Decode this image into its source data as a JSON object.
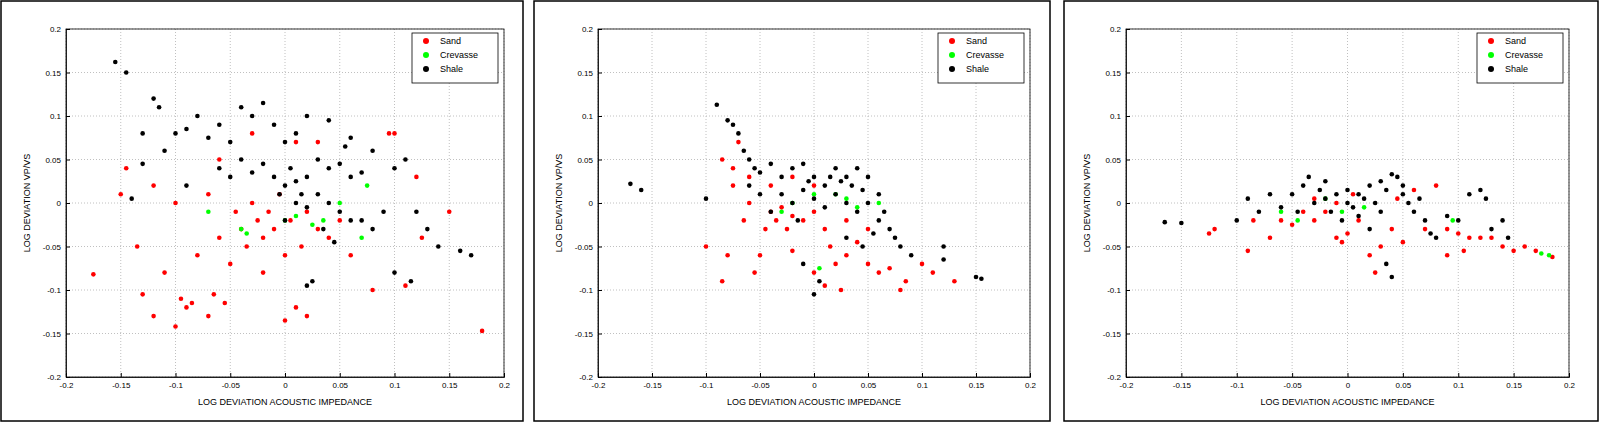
{
  "chart_data": [
    {
      "type": "scatter",
      "xlabel": "LOG DEVIATION ACOUSTIC IMPEDANCE",
      "ylabel": "LOG DEVIATION VP/VS",
      "xlim": [
        -0.2,
        0.2
      ],
      "ylim": [
        -0.2,
        0.2
      ],
      "xticks": [
        -0.2,
        -0.15,
        -0.1,
        -0.05,
        0,
        0.05,
        0.1,
        0.15,
        0.2
      ],
      "yticks": [
        -0.2,
        -0.15,
        -0.1,
        -0.05,
        0,
        0.05,
        0.1,
        0.15,
        0.2
      ],
      "grid": true,
      "legend": "upper right",
      "series": [
        {
          "name": "Sand",
          "color": "#ff0000",
          "marker": "circle",
          "x": [
            -0.175,
            -0.15,
            -0.145,
            -0.135,
            -0.13,
            -0.12,
            -0.11,
            -0.1,
            -0.095,
            -0.09,
            -0.085,
            -0.08,
            -0.07,
            -0.065,
            -0.06,
            -0.055,
            -0.05,
            -0.045,
            -0.04,
            -0.035,
            -0.03,
            -0.025,
            -0.02,
            -0.015,
            -0.01,
            -0.005,
            0,
            0.005,
            0.01,
            0.015,
            0.02,
            0.03,
            0.04,
            0.05,
            0.06,
            0.08,
            0.095,
            0.1,
            0.12,
            0.125,
            0.15,
            0.18,
            -0.12,
            -0.1,
            -0.07,
            -0.06,
            -0.03,
            0.01,
            0.03,
            -0.02,
            0,
            0.02,
            0.11
          ],
          "values": [
            -0.082,
            0.01,
            0.04,
            -0.05,
            -0.105,
            -0.13,
            -0.08,
            -0.142,
            -0.11,
            -0.12,
            -0.115,
            -0.06,
            -0.13,
            -0.105,
            -0.04,
            -0.115,
            -0.07,
            -0.01,
            -0.03,
            -0.05,
            0,
            -0.02,
            -0.04,
            -0.01,
            -0.03,
            0.01,
            -0.135,
            -0.02,
            -0.12,
            -0.05,
            -0.01,
            -0.03,
            -0.04,
            -0.02,
            -0.06,
            -0.1,
            0.08,
            0.08,
            0.03,
            -0.04,
            -0.01,
            -0.147,
            0.02,
            0,
            0.01,
            0.05,
            0.08,
            0.07,
            0.07,
            -0.08,
            -0.06,
            -0.13,
            -0.095
          ]
        },
        {
          "name": "Crevasse",
          "color": "#00ff00",
          "marker": "circle",
          "x": [
            -0.07,
            -0.04,
            -0.035,
            0,
            0.01,
            0.025,
            0.035,
            0.05,
            0.075,
            0.07
          ],
          "values": [
            -0.01,
            -0.03,
            -0.035,
            -0.02,
            -0.015,
            -0.025,
            -0.02,
            0,
            0.02,
            -0.04
          ]
        },
        {
          "name": "Shale",
          "color": "#000000",
          "marker": "circle",
          "x": [
            -0.155,
            -0.145,
            -0.12,
            -0.115,
            -0.13,
            -0.1,
            -0.09,
            -0.08,
            -0.07,
            -0.06,
            -0.05,
            -0.04,
            -0.03,
            -0.02,
            -0.01,
            0,
            0.01,
            0.02,
            0.04,
            0.06,
            0.08,
            -0.06,
            -0.05,
            -0.04,
            -0.03,
            -0.02,
            -0.01,
            0,
            0.005,
            0.01,
            0.02,
            0.03,
            0.04,
            0.05,
            0.06,
            0.07,
            0.01,
            0.02,
            0.03,
            0.04,
            0.05,
            0.06,
            0.07,
            0.08,
            0.09,
            0.1,
            0.11,
            0.12,
            0.13,
            0.14,
            0.16,
            0.17,
            0.1,
            0.115,
            0.025,
            0.02,
            -0.13,
            -0.14,
            -0.09,
            -0.11,
            0,
            -0.005,
            0.015,
            0.035,
            0.045,
            0.055
          ],
          "values": [
            0.162,
            0.15,
            0.12,
            0.11,
            0.08,
            0.08,
            0.085,
            0.1,
            0.075,
            0.09,
            0.07,
            0.11,
            0.1,
            0.115,
            0.09,
            0.07,
            0.08,
            0.1,
            0.095,
            0.075,
            0.06,
            0.04,
            0.03,
            0.05,
            0.035,
            0.045,
            0.03,
            0.02,
            0.04,
            0.025,
            0.03,
            0.05,
            0.04,
            0.045,
            0.03,
            0.035,
            0,
            -0.005,
            0.01,
            0,
            -0.01,
            -0.02,
            -0.02,
            -0.03,
            -0.01,
            0.04,
            0.05,
            -0.01,
            -0.03,
            -0.05,
            -0.055,
            -0.06,
            -0.08,
            -0.09,
            -0.09,
            -0.095,
            0.045,
            0.005,
            0.02,
            0.06,
            -0.02,
            0.01,
            0.01,
            -0.03,
            -0.045,
            0.065
          ]
        }
      ]
    },
    {
      "type": "scatter",
      "xlabel": "LOG DEVIATION ACOUSTIC IMPEDANCE",
      "ylabel": "LOG DEVIATION VP/VS",
      "xlim": [
        -0.2,
        0.2
      ],
      "ylim": [
        -0.2,
        0.2
      ],
      "xticks": [
        -0.2,
        -0.15,
        -0.1,
        -0.05,
        0,
        0.05,
        0.1,
        0.15,
        0.2
      ],
      "yticks": [
        -0.2,
        -0.15,
        -0.1,
        -0.05,
        0,
        0.05,
        0.1,
        0.15,
        0.2
      ],
      "grid": true,
      "legend": "upper right",
      "series": [
        {
          "name": "Sand",
          "color": "#ff0000",
          "marker": "circle",
          "x": [
            -0.1,
            -0.085,
            -0.08,
            -0.085,
            -0.075,
            -0.07,
            -0.065,
            -0.06,
            -0.055,
            -0.05,
            -0.045,
            -0.04,
            -0.035,
            -0.03,
            -0.025,
            -0.02,
            -0.01,
            0,
            0.01,
            0.015,
            0.02,
            0.025,
            0.03,
            0.04,
            0.05,
            0.06,
            0.07,
            0.08,
            0.085,
            0.1,
            0.11,
            0.13,
            0,
            0.01,
            -0.02,
            -0.04,
            -0.02,
            0,
            0.03,
            -0.06,
            -0.075,
            0.05
          ],
          "values": [
            -0.05,
            -0.09,
            -0.06,
            0.05,
            0.02,
            0.07,
            -0.02,
            0,
            -0.08,
            -0.06,
            -0.03,
            -0.01,
            -0.02,
            -0.005,
            -0.03,
            -0.015,
            -0.02,
            -0.01,
            -0.03,
            -0.05,
            -0.07,
            -0.1,
            -0.06,
            -0.045,
            -0.07,
            -0.08,
            -0.075,
            -0.1,
            -0.09,
            -0.07,
            -0.08,
            -0.09,
            -0.08,
            -0.095,
            -0.055,
            0.02,
            0.03,
            0.02,
            -0.02,
            0.03,
            0.04,
            -0.03
          ]
        },
        {
          "name": "Crevasse",
          "color": "#00ff00",
          "marker": "circle",
          "x": [
            -0.03,
            -0.02,
            0,
            0.005,
            0.02,
            0.03,
            0.04,
            0.06
          ],
          "values": [
            -0.01,
            0,
            0.01,
            -0.075,
            0.01,
            0.005,
            -0.005,
            0
          ]
        },
        {
          "name": "Shale",
          "color": "#000000",
          "marker": "circle",
          "x": [
            -0.17,
            -0.16,
            -0.1,
            -0.09,
            -0.08,
            -0.075,
            -0.07,
            -0.065,
            -0.06,
            -0.055,
            -0.05,
            -0.04,
            -0.03,
            -0.02,
            -0.01,
            0,
            0.01,
            0.02,
            0.03,
            0.04,
            0.05,
            -0.03,
            -0.02,
            -0.01,
            0,
            0.01,
            0.02,
            0.03,
            0.04,
            0.05,
            0.06,
            0.07,
            0.075,
            0.08,
            0.09,
            0.12,
            0.15,
            0.155,
            0,
            0.005,
            -0.01,
            0.03,
            0.045,
            -0.04,
            -0.05,
            0.015,
            0.025,
            0.035,
            -0.005,
            0.045,
            0.06,
            -0.06,
            0.065,
            -0.015,
            0.055,
            0.12
          ],
          "values": [
            0.022,
            0.015,
            0.005,
            0.113,
            0.095,
            0.09,
            0.08,
            0.06,
            0.05,
            0.04,
            0.035,
            0.045,
            0.03,
            0.04,
            0.045,
            0.03,
            0.02,
            0.04,
            0.03,
            0.04,
            0.03,
            0.01,
            0,
            0.015,
            0.005,
            -0.005,
            0.01,
            0,
            -0.01,
            0,
            -0.02,
            -0.03,
            -0.04,
            -0.05,
            -0.06,
            -0.05,
            -0.085,
            -0.087,
            -0.105,
            -0.09,
            -0.07,
            -0.04,
            -0.05,
            -0.01,
            0.01,
            0.03,
            0.025,
            0.02,
            0.025,
            0.015,
            0.01,
            0.02,
            -0.01,
            -0.02,
            -0.035,
            -0.065
          ]
        }
      ]
    },
    {
      "type": "scatter",
      "xlabel": "LOG DEVIATION ACOUSTIC IMPEDANCE",
      "ylabel": "LOG DEVIATION VP/VS",
      "xlim": [
        -0.2,
        0.2
      ],
      "ylim": [
        -0.2,
        0.2
      ],
      "xticks": [
        -0.2,
        -0.15,
        -0.1,
        -0.05,
        0,
        0.05,
        0.1,
        0.15,
        0.2
      ],
      "yticks": [
        -0.2,
        -0.15,
        -0.1,
        -0.05,
        0,
        0.05,
        0.1,
        0.15,
        0.2
      ],
      "grid": true,
      "legend": "upper right",
      "series": [
        {
          "name": "Sand",
          "color": "#ff0000",
          "marker": "circle",
          "x": [
            -0.125,
            -0.12,
            -0.09,
            -0.085,
            -0.07,
            -0.06,
            -0.05,
            -0.04,
            -0.03,
            -0.02,
            -0.01,
            -0.005,
            0,
            0.01,
            0.02,
            0.025,
            0.03,
            0.04,
            0.05,
            0.06,
            0.07,
            0.08,
            0.09,
            0.1,
            0.11,
            0.12,
            0.13,
            0.14,
            0.15,
            0.16,
            0.17,
            0.185,
            0.09,
            0.105,
            -0.01,
            0.005,
            -0.03,
            0.045
          ],
          "values": [
            -0.035,
            -0.03,
            -0.055,
            -0.02,
            -0.04,
            -0.02,
            -0.025,
            -0.01,
            -0.02,
            -0.01,
            -0.04,
            -0.045,
            -0.035,
            -0.02,
            -0.06,
            -0.08,
            -0.05,
            -0.03,
            -0.045,
            0.015,
            -0.03,
            0.02,
            -0.03,
            -0.035,
            -0.04,
            -0.04,
            -0.04,
            -0.05,
            -0.055,
            -0.05,
            -0.055,
            -0.062,
            -0.06,
            -0.055,
            0,
            0.01,
            0.005,
            0.005
          ]
        },
        {
          "name": "Crevasse",
          "color": "#00ff00",
          "marker": "circle",
          "x": [
            -0.06,
            -0.045,
            -0.02,
            -0.005,
            0.015,
            0.095,
            0.175,
            0.182
          ],
          "values": [
            -0.01,
            -0.02,
            0.005,
            -0.01,
            -0.005,
            -0.02,
            -0.058,
            -0.06
          ]
        },
        {
          "name": "Shale",
          "color": "#000000",
          "marker": "circle",
          "x": [
            -0.165,
            -0.15,
            -0.1,
            -0.09,
            -0.08,
            -0.07,
            -0.06,
            -0.05,
            -0.04,
            -0.035,
            -0.03,
            -0.02,
            -0.015,
            -0.01,
            0,
            0.005,
            0.01,
            0.015,
            0.02,
            0.025,
            0.03,
            0.035,
            0.04,
            0.045,
            0.05,
            0.055,
            0.06,
            0.07,
            0.075,
            0.08,
            0.09,
            0.1,
            0.11,
            0.12,
            0.125,
            0.13,
            0.14,
            0.145,
            0.04,
            0.035,
            -0.02,
            0,
            0.01,
            -0.005,
            0.03,
            0.05,
            0.065,
            -0.025,
            -0.045,
            0.02
          ],
          "values": [
            -0.022,
            -0.023,
            -0.02,
            0.005,
            -0.01,
            0.01,
            -0.005,
            0.01,
            0.02,
            0.03,
            0,
            0.005,
            -0.01,
            0.01,
            0,
            -0.005,
            0.01,
            0.005,
            0.02,
            0,
            0.025,
            0.015,
            0.033,
            0.03,
            0.01,
            0,
            -0.01,
            -0.02,
            -0.035,
            -0.04,
            -0.015,
            -0.02,
            0.01,
            0.015,
            0.005,
            -0.03,
            -0.02,
            -0.04,
            -0.085,
            -0.07,
            0.025,
            0.015,
            -0.015,
            -0.02,
            -0.01,
            0.02,
            0.005,
            0.015,
            -0.01,
            -0.03
          ]
        }
      ]
    }
  ]
}
